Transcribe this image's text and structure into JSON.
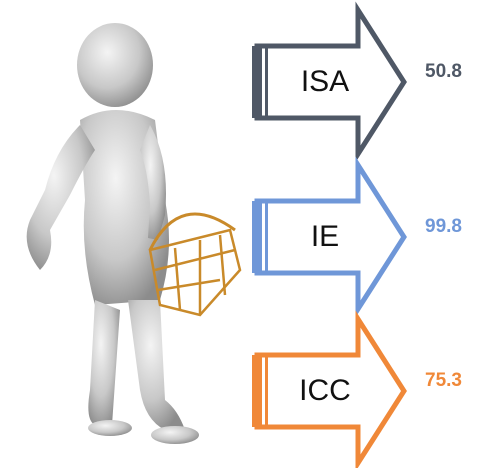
{
  "items": [
    {
      "label": "ISA",
      "value": 50.8,
      "color": "#4f5866"
    },
    {
      "label": "IE",
      "value": 99.8,
      "color": "#6f97d8"
    },
    {
      "label": "ICC",
      "value": 75.3,
      "color": "#f08838"
    }
  ]
}
